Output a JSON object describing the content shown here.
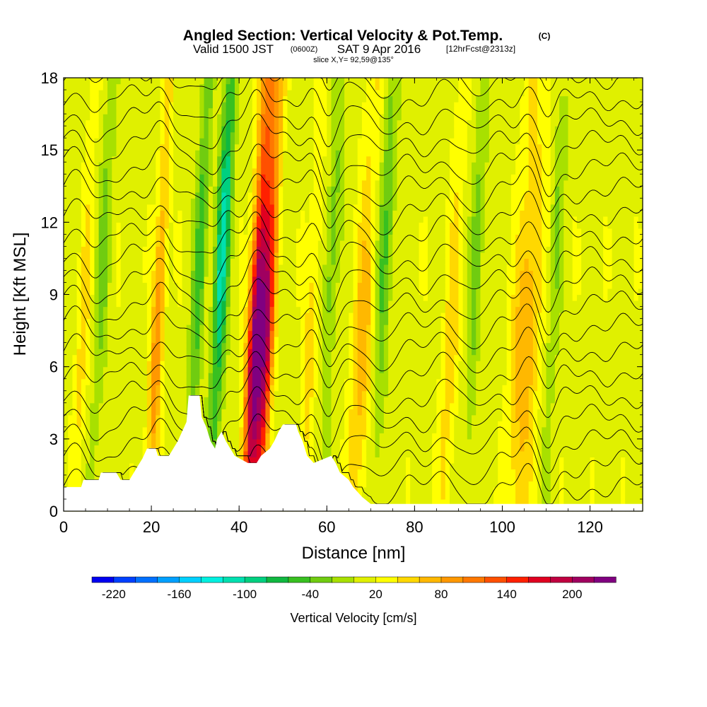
{
  "header": {
    "title": "Angled Section: Vertical Velocity & Pot.Temp.",
    "title_tag": "(C)",
    "valid_main": "Valid 1500 JST",
    "valid_small": "(0600Z)",
    "valid_date": "SAT 9 Apr 2016",
    "forecast": "[12hrFcst@2313z]",
    "slice": "slice X,Y= 92,59@135°"
  },
  "chart_data": {
    "type": "heatmap",
    "title": "Angled Section: Vertical Velocity & Pot.Temp.",
    "xlabel": "Distance [nm]",
    "ylabel": "Height [Kft MSL]",
    "xlim": [
      0,
      132
    ],
    "ylim": [
      0,
      18
    ],
    "x_ticks": [
      0,
      20,
      40,
      60,
      80,
      100,
      120
    ],
    "y_ticks": [
      0,
      3,
      6,
      9,
      12,
      15,
      18
    ],
    "colorbar": {
      "label": "Vertical Velocity [cm/s]",
      "tick_labels": [
        "-220",
        "-160",
        "-100",
        "-40",
        "20",
        "80",
        "140",
        "200"
      ],
      "tick_values": [
        -220,
        -160,
        -100,
        -40,
        20,
        80,
        140,
        200
      ],
      "levels": [
        -240,
        -220,
        -200,
        -180,
        -160,
        -140,
        -120,
        -100,
        -80,
        -60,
        -40,
        -20,
        0,
        20,
        40,
        60,
        80,
        100,
        120,
        140,
        160,
        180,
        200,
        220,
        240
      ],
      "colors": [
        "#0000f0",
        "#0040ff",
        "#0070ff",
        "#00a0ff",
        "#00d0ff",
        "#00f0e0",
        "#00e0b0",
        "#00d080",
        "#10b840",
        "#38c020",
        "#70cc10",
        "#a8e000",
        "#e0f000",
        "#ffff00",
        "#ffd800",
        "#ffb800",
        "#ff9800",
        "#ff7800",
        "#ff5000",
        "#ff2000",
        "#e00020",
        "#c00040",
        "#a00060",
        "#800080"
      ]
    },
    "updrafts": [
      {
        "x": 43.5,
        "peak": 230,
        "width": 1.8
      },
      {
        "x": 46,
        "peak": 160,
        "width": 1.6
      },
      {
        "x": 21,
        "peak": 90,
        "width": 1.4
      },
      {
        "x": 68,
        "peak": 60,
        "width": 2.5
      },
      {
        "x": 105,
        "peak": 70,
        "width": 3.0
      },
      {
        "x": 88,
        "peak": 40,
        "width": 2.0
      },
      {
        "x": 56,
        "peak": 40,
        "width": 1.6
      },
      {
        "x": 4,
        "peak": 35,
        "width": 1.5
      }
    ],
    "downdrafts": [
      {
        "x": 35,
        "peak": -120,
        "width": 1.6
      },
      {
        "x": 30,
        "peak": -70,
        "width": 1.4
      },
      {
        "x": 72,
        "peak": -60,
        "width": 1.8
      },
      {
        "x": 93,
        "peak": -45,
        "width": 1.5
      },
      {
        "x": 8,
        "peak": -40,
        "width": 1.5
      },
      {
        "x": 111,
        "peak": -35,
        "width": 1.4
      },
      {
        "x": 60,
        "peak": -45,
        "width": 1.6
      }
    ],
    "terrain": [
      [
        0,
        1.0
      ],
      [
        4,
        1.0
      ],
      [
        4.5,
        1.3
      ],
      [
        8,
        1.3
      ],
      [
        8.5,
        1.6
      ],
      [
        12,
        1.6
      ],
      [
        13,
        1.3
      ],
      [
        15,
        1.3
      ],
      [
        16,
        1.6
      ],
      [
        17,
        1.9
      ],
      [
        18,
        2.2
      ],
      [
        19,
        2.6
      ],
      [
        21,
        2.6
      ],
      [
        21.5,
        2.3
      ],
      [
        24,
        2.3
      ],
      [
        25,
        2.6
      ],
      [
        26,
        2.9
      ],
      [
        27,
        3.3
      ],
      [
        28,
        3.7
      ],
      [
        28.5,
        4.8
      ],
      [
        31,
        4.8
      ],
      [
        31.5,
        3.9
      ],
      [
        32.5,
        3.5
      ],
      [
        33.5,
        2.9
      ],
      [
        34.5,
        2.6
      ],
      [
        35,
        3.0
      ],
      [
        36,
        3.3
      ],
      [
        37,
        2.9
      ],
      [
        38,
        2.6
      ],
      [
        39,
        2.3
      ],
      [
        42,
        2.0
      ],
      [
        44,
        2.0
      ],
      [
        45,
        2.3
      ],
      [
        47,
        2.6
      ],
      [
        48,
        2.9
      ],
      [
        49,
        3.3
      ],
      [
        50,
        3.6
      ],
      [
        53,
        3.6
      ],
      [
        53.5,
        3.3
      ],
      [
        54.5,
        2.9
      ],
      [
        55.5,
        2.3
      ],
      [
        57,
        2.0
      ],
      [
        61,
        2.3
      ],
      [
        62,
        2.0
      ],
      [
        63,
        1.6
      ],
      [
        65,
        1.3
      ],
      [
        66,
        1.0
      ],
      [
        68,
        0.6
      ],
      [
        70,
        0.3
      ],
      [
        132,
        0.3
      ]
    ],
    "theta_contour_base": [
      16,
      17,
      18,
      19,
      20,
      21,
      22,
      23,
      24,
      25,
      26,
      27,
      28,
      29,
      30,
      31,
      32,
      33,
      34
    ]
  },
  "axis_tick_labels": {
    "x": [
      "0",
      "20",
      "40",
      "60",
      "80",
      "100",
      "120"
    ],
    "y": [
      "0",
      "3",
      "6",
      "9",
      "12",
      "15",
      "18"
    ]
  }
}
